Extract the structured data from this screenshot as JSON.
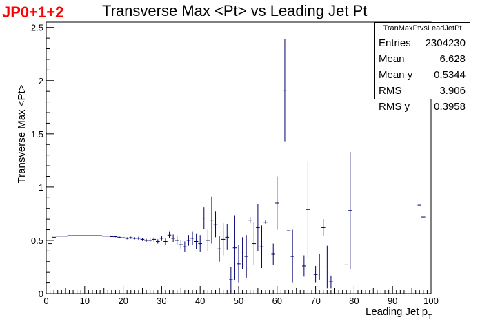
{
  "header": {
    "tag": "JP0+1+2"
  },
  "stats": {
    "name": "TranMaxPtvsLeadJetPt",
    "rows": [
      {
        "label": "Entries",
        "value": "2304230"
      },
      {
        "label": "Mean",
        "value": "6.628"
      },
      {
        "label": "Mean y",
        "value": "0.5344"
      },
      {
        "label": "RMS",
        "value": "3.906"
      },
      {
        "label": "RMS y",
        "value": "0.3958"
      }
    ]
  },
  "colors": {
    "markers": "#00006e",
    "tag": "#ff0000"
  },
  "chart_data": {
    "type": "scatter",
    "title": "Transverse Max <Pt> vs Leading Jet Pt",
    "xlabel": "Leading Jet p",
    "xlabel_sub": "T",
    "ylabel": "Transverse Max <Pt>",
    "xlim": [
      0,
      100
    ],
    "ylim": [
      0,
      2.55
    ],
    "x_ticks": [
      "0",
      "10",
      "20",
      "30",
      "40",
      "50",
      "60",
      "70",
      "80",
      "90",
      "100"
    ],
    "y_ticks": [
      "0",
      "0.5",
      "1",
      "1.5",
      "2",
      "2.5"
    ],
    "grid": false,
    "legend": "top-right",
    "bin_width": 1,
    "series": [
      {
        "points": [
          {
            "x": 1,
            "y": 0.47,
            "err": 0
          },
          {
            "x": 2,
            "y": 0.53,
            "err": 0
          },
          {
            "x": 3,
            "y": 0.54,
            "err": 0
          },
          {
            "x": 4,
            "y": 0.54,
            "err": 0
          },
          {
            "x": 5,
            "y": 0.54,
            "err": 0
          },
          {
            "x": 6,
            "y": 0.545,
            "err": 0
          },
          {
            "x": 7,
            "y": 0.545,
            "err": 0
          },
          {
            "x": 8,
            "y": 0.545,
            "err": 0
          },
          {
            "x": 9,
            "y": 0.545,
            "err": 0
          },
          {
            "x": 10,
            "y": 0.545,
            "err": 0
          },
          {
            "x": 11,
            "y": 0.545,
            "err": 0
          },
          {
            "x": 12,
            "y": 0.545,
            "err": 0
          },
          {
            "x": 13,
            "y": 0.545,
            "err": 0
          },
          {
            "x": 14,
            "y": 0.545,
            "err": 0
          },
          {
            "x": 15,
            "y": 0.54,
            "err": 0
          },
          {
            "x": 16,
            "y": 0.54,
            "err": 0
          },
          {
            "x": 17,
            "y": 0.535,
            "err": 0
          },
          {
            "x": 18,
            "y": 0.535,
            "err": 0.005
          },
          {
            "x": 19,
            "y": 0.53,
            "err": 0.005
          },
          {
            "x": 20,
            "y": 0.525,
            "err": 0.01
          },
          {
            "x": 21,
            "y": 0.52,
            "err": 0.01
          },
          {
            "x": 22,
            "y": 0.525,
            "err": 0.01
          },
          {
            "x": 23,
            "y": 0.52,
            "err": 0.01
          },
          {
            "x": 24,
            "y": 0.52,
            "err": 0.015
          },
          {
            "x": 25,
            "y": 0.51,
            "err": 0.015
          },
          {
            "x": 26,
            "y": 0.5,
            "err": 0.015
          },
          {
            "x": 27,
            "y": 0.5,
            "err": 0.02
          },
          {
            "x": 28,
            "y": 0.51,
            "err": 0.02
          },
          {
            "x": 29,
            "y": 0.49,
            "err": 0.02
          },
          {
            "x": 30,
            "y": 0.52,
            "err": 0.025
          },
          {
            "x": 31,
            "y": 0.49,
            "err": 0.03
          },
          {
            "x": 32,
            "y": 0.55,
            "err": 0.03
          },
          {
            "x": 33,
            "y": 0.52,
            "err": 0.035
          },
          {
            "x": 34,
            "y": 0.5,
            "err": 0.04
          },
          {
            "x": 35,
            "y": 0.46,
            "err": 0.04
          },
          {
            "x": 36,
            "y": 0.44,
            "err": 0.05
          },
          {
            "x": 37,
            "y": 0.5,
            "err": 0.05
          },
          {
            "x": 38,
            "y": 0.52,
            "err": 0.06
          },
          {
            "x": 39,
            "y": 0.49,
            "err": 0.07
          },
          {
            "x": 40,
            "y": 0.47,
            "err": 0.08
          },
          {
            "x": 41,
            "y": 0.71,
            "err": 0.1
          },
          {
            "x": 42,
            "y": 0.5,
            "err": 0.1
          },
          {
            "x": 43,
            "y": 0.69,
            "err": 0.22
          },
          {
            "x": 44,
            "y": 0.65,
            "err": 0.12
          },
          {
            "x": 45,
            "y": 0.42,
            "err": 0.12
          },
          {
            "x": 46,
            "y": 0.51,
            "err": 0.15
          },
          {
            "x": 47,
            "y": 0.53,
            "err": 0.12
          },
          {
            "x": 48,
            "y": 0.13,
            "err": 0.12
          },
          {
            "x": 49,
            "y": 0.43,
            "err": 0.3
          },
          {
            "x": 50,
            "y": 0.28,
            "err": 0.18
          },
          {
            "x": 51,
            "y": 0.38,
            "err": 0.15
          },
          {
            "x": 52,
            "y": 0.35,
            "err": 0.2
          },
          {
            "x": 53,
            "y": 0.69,
            "err": 0.03
          },
          {
            "x": 54,
            "y": 0.47,
            "err": 0.2
          },
          {
            "x": 55,
            "y": 0.62,
            "err": 0.22
          },
          {
            "x": 56,
            "y": 0.44,
            "err": 0.2
          },
          {
            "x": 57,
            "y": 0.67,
            "err": 0.02
          },
          {
            "x": 59,
            "y": 0.37,
            "err": 0.1
          },
          {
            "x": 60,
            "y": 0.85,
            "err": 0.25
          },
          {
            "x": 62,
            "y": 1.91,
            "err": 0.48
          },
          {
            "x": 63,
            "y": 0.59,
            "err": 0
          },
          {
            "x": 64,
            "y": 0.35,
            "err": 0.25
          },
          {
            "x": 67,
            "y": 0.26,
            "err": 0.1
          },
          {
            "x": 68,
            "y": 0.79,
            "err": 0.45
          },
          {
            "x": 70,
            "y": 0.18,
            "err": 0.08
          },
          {
            "x": 71,
            "y": 0.25,
            "err": 0.12
          },
          {
            "x": 72,
            "y": 0.62,
            "err": 0.08
          },
          {
            "x": 73,
            "y": 0.25,
            "err": 0.2
          },
          {
            "x": 74,
            "y": 0.11,
            "err": 0.06
          },
          {
            "x": 78,
            "y": 0.27,
            "err": 0
          },
          {
            "x": 79,
            "y": 0.78,
            "err": 0.55
          },
          {
            "x": 97,
            "y": 0.83,
            "err": 0
          },
          {
            "x": 98,
            "y": 0.72,
            "err": 0
          }
        ]
      }
    ]
  }
}
